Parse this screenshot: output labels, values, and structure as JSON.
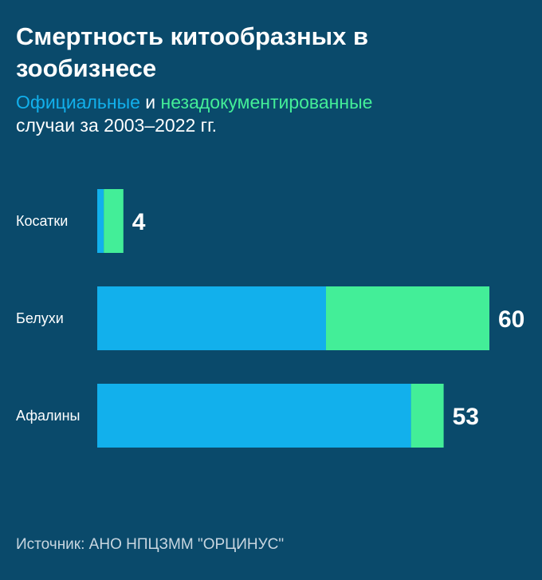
{
  "title": "Смертность китообразных в зообизнесе",
  "subtitle": {
    "official_label": "Официальные",
    "conjunction": "и",
    "undocumented_label": "незадокументированные",
    "line2": "случаи за 2003–2022 гг."
  },
  "source": "Источник: АНО НПЦЗММ \"ОРЦИНУС\"",
  "colors": {
    "background": "#0a4a6b",
    "official": "#12b0ec",
    "undocumented": "#43ee98"
  },
  "chart_data": {
    "type": "bar",
    "orientation": "horizontal",
    "stacked": true,
    "categories": [
      "Косатки",
      "Белухи",
      "Афалины"
    ],
    "series": [
      {
        "name": "Официальные",
        "values": [
          1,
          35,
          48
        ]
      },
      {
        "name": "незадокументированные",
        "values": [
          3,
          25,
          5
        ]
      }
    ],
    "totals": [
      4,
      60,
      53
    ],
    "xlim": [
      0,
      60
    ],
    "grid": false,
    "legend": "subtitle"
  }
}
